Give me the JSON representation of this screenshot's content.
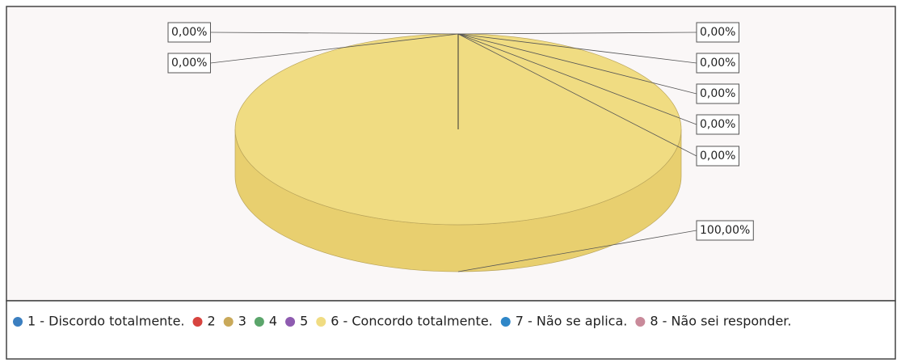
{
  "chart_data": {
    "type": "pie",
    "categories": [
      "1 - Discordo totalmente.",
      "2",
      "3",
      "4",
      "5",
      "6 - Concordo totalmente.",
      "7 - Não se aplica.",
      "8 - Não sei responder."
    ],
    "values": [
      0,
      0,
      0,
      0,
      0,
      100,
      0,
      0
    ],
    "value_labels": [
      "0,00%",
      "0,00%",
      "0,00%",
      "0,00%",
      "0,00%",
      "100,00%",
      "0,00%",
      "0,00%"
    ],
    "colors": [
      "#3b7fc0",
      "#d7443f",
      "#c9a95a",
      "#5ba56b",
      "#8e5bb0",
      "#f0dc82",
      "#2f87c8",
      "#c98a9a"
    ]
  }
}
